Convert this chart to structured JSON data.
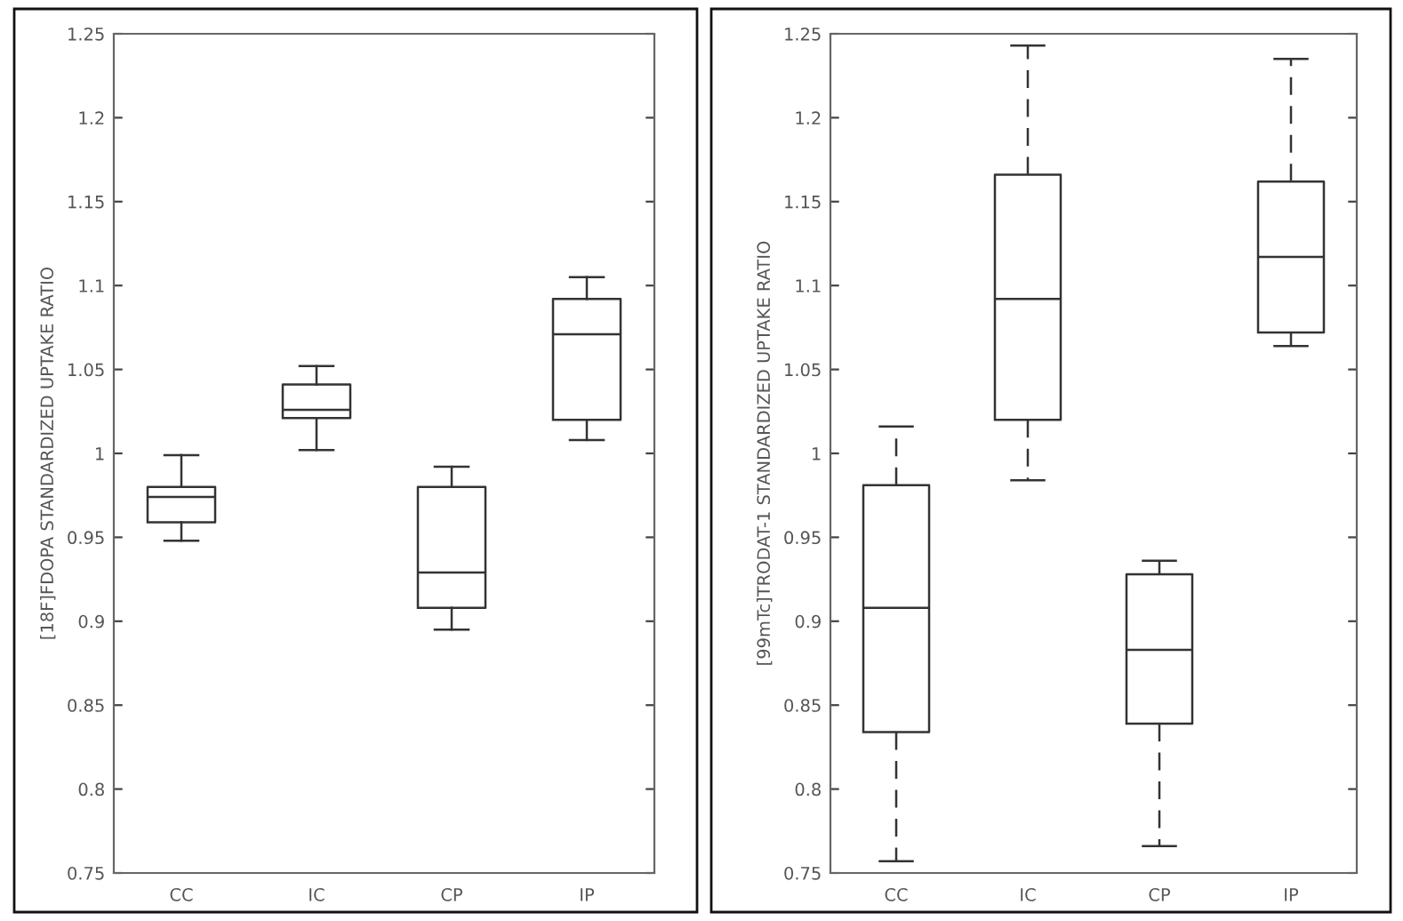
{
  "chart_data": [
    {
      "type": "box",
      "ylabel": "[18F]FDOPA STANDARDIZED UPTAKE RATIO",
      "categories": [
        "CC",
        "IC",
        "CP",
        "IP"
      ],
      "line_style": "solid",
      "color": "#333333",
      "ylim": [
        0.75,
        1.25
      ],
      "yticks": [
        0.75,
        0.8,
        0.85,
        0.9,
        0.95,
        1,
        1.05,
        1.1,
        1.15,
        1.2,
        1.25
      ],
      "grid": false,
      "boxes": [
        {
          "low": 0.948,
          "q1": 0.959,
          "median": 0.974,
          "q3": 0.98,
          "high": 0.999
        },
        {
          "low": 1.002,
          "q1": 1.021,
          "median": 1.026,
          "q3": 1.041,
          "high": 1.052
        },
        {
          "low": 0.895,
          "q1": 0.908,
          "median": 0.929,
          "q3": 0.98,
          "high": 0.992
        },
        {
          "low": 1.008,
          "q1": 1.02,
          "median": 1.071,
          "q3": 1.092,
          "high": 1.105
        }
      ]
    },
    {
      "type": "box",
      "ylabel": "[99mTc]TRODAT-1 STANDARDIZED UPTAKE RATIO",
      "categories": [
        "CC",
        "IC",
        "CP",
        "IP"
      ],
      "line_style": "dashed",
      "color": "#333333",
      "ylim": [
        0.75,
        1.25
      ],
      "yticks": [
        0.75,
        0.8,
        0.85,
        0.9,
        0.95,
        1,
        1.05,
        1.1,
        1.15,
        1.2,
        1.25
      ],
      "grid": false,
      "boxes": [
        {
          "low": 0.757,
          "q1": 0.834,
          "median": 0.908,
          "q3": 0.981,
          "high": 1.016
        },
        {
          "low": 0.984,
          "q1": 1.02,
          "median": 1.092,
          "q3": 1.166,
          "high": 1.243
        },
        {
          "low": 0.766,
          "q1": 0.839,
          "median": 0.883,
          "q3": 0.928,
          "high": 0.936
        },
        {
          "low": 1.064,
          "q1": 1.072,
          "median": 1.117,
          "q3": 1.162,
          "high": 1.235
        }
      ]
    }
  ]
}
